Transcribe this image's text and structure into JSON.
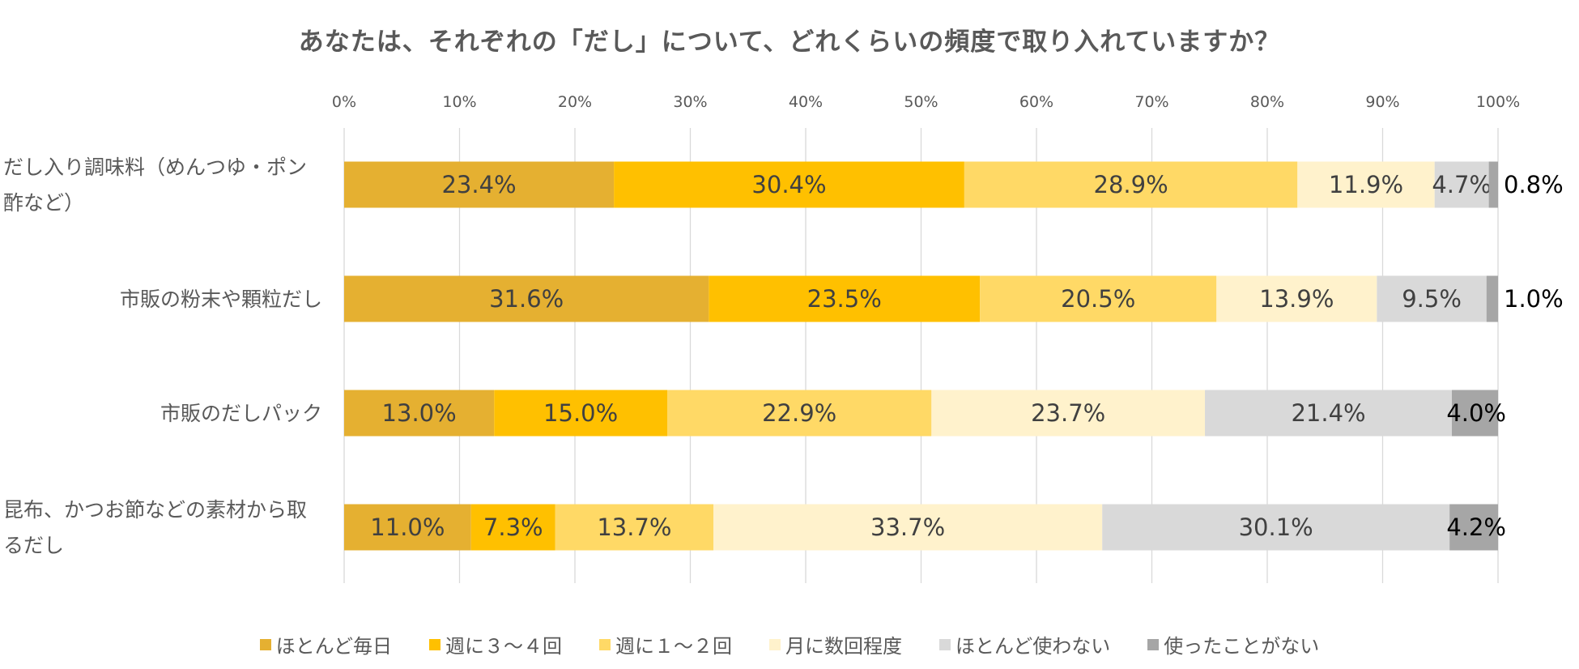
{
  "chart_data": {
    "type": "bar",
    "orientation": "horizontal",
    "stacked": true,
    "percent": true,
    "title": "あなたは、それぞれの「だし」について、どれくらいの頻度で取り入れていますか？",
    "xlim": [
      0,
      100
    ],
    "x_ticks": [
      "0%",
      "10%",
      "20%",
      "30%",
      "40%",
      "50%",
      "60%",
      "70%",
      "80%",
      "90%",
      "100%"
    ],
    "categories": [
      [
        "だし入り調味料（めんつゆ・ポン",
        "酢など）"
      ],
      [
        "市販の粉末や顆粒だし"
      ],
      [
        "市販のだしパック"
      ],
      [
        "昆布、かつお節などの素材から取",
        "るだし"
      ]
    ],
    "series": [
      {
        "name": "ほとんど毎日",
        "color": "#E5B031",
        "values": [
          23.4,
          31.6,
          13.0,
          11.0
        ],
        "labels": [
          "23.4%",
          "31.6%",
          "13.0%",
          "11.0%"
        ]
      },
      {
        "name": "週に３～４回",
        "color": "#FFC000",
        "values": [
          30.4,
          23.5,
          15.0,
          7.3
        ],
        "labels": [
          "30.4%",
          "23.5%",
          "15.0%",
          "7.3%"
        ]
      },
      {
        "name": "週に１～２回",
        "color": "#FFD966",
        "values": [
          28.9,
          20.5,
          22.9,
          13.7
        ],
        "labels": [
          "28.9%",
          "20.5%",
          "22.9%",
          "13.7%"
        ]
      },
      {
        "name": "月に数回程度",
        "color": "#FFF2CC",
        "values": [
          11.9,
          13.9,
          23.7,
          33.7
        ],
        "labels": [
          "11.9%",
          "13.9%",
          "23.7%",
          "33.7%"
        ]
      },
      {
        "name": "ほとんど使わない",
        "color": "#D9D9D9",
        "values": [
          4.7,
          9.5,
          21.4,
          30.1
        ],
        "labels": [
          "4.7%",
          "9.5%",
          "21.4%",
          "30.1%"
        ]
      },
      {
        "name": "使ったことがない",
        "color": "#A6A6A6",
        "values": [
          0.8,
          1.0,
          4.0,
          4.2
        ],
        "labels": [
          "0.8%",
          "1.0%",
          "4.0%",
          "4.2%"
        ]
      }
    ],
    "legend_position": "bottom",
    "grid": true
  }
}
